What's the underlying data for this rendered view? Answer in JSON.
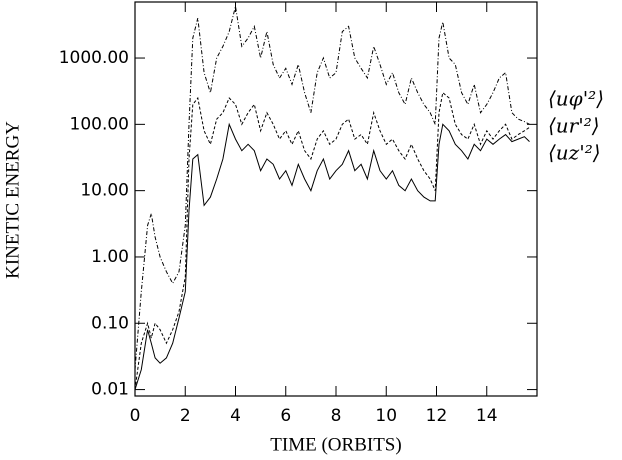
{
  "chart_data": {
    "type": "line",
    "xlabel": "TIME (ORBITS)",
    "ylabel": "KINETIC ENERGY",
    "yscale": "log",
    "xlim": [
      0,
      16
    ],
    "ylim": [
      0.008,
      7000
    ],
    "xticks": [
      0,
      2,
      4,
      6,
      8,
      10,
      12,
      14
    ],
    "yticks": [
      {
        "value": 0.01,
        "label": "0.01"
      },
      {
        "value": 0.1,
        "label": "0.10"
      },
      {
        "value": 1,
        "label": "1.00"
      },
      {
        "value": 10,
        "label": "10.00"
      },
      {
        "value": 100,
        "label": "100.00"
      },
      {
        "value": 1000,
        "label": "1000.00"
      }
    ],
    "x": [
      0,
      0.25,
      0.5,
      0.65,
      0.8,
      1.0,
      1.25,
      1.5,
      1.75,
      2.0,
      2.15,
      2.3,
      2.5,
      2.75,
      3.0,
      3.25,
      3.5,
      3.75,
      4.0,
      4.25,
      4.5,
      4.75,
      5.0,
      5.25,
      5.5,
      5.75,
      6.0,
      6.25,
      6.5,
      6.75,
      7.0,
      7.25,
      7.5,
      7.75,
      8.0,
      8.25,
      8.5,
      8.75,
      9.0,
      9.25,
      9.5,
      9.75,
      10.0,
      10.25,
      10.5,
      10.75,
      11.0,
      11.25,
      11.5,
      11.75,
      11.95,
      12.1,
      12.25,
      12.5,
      12.75,
      13.0,
      13.25,
      13.5,
      13.75,
      14.0,
      14.25,
      14.5,
      14.75,
      15.0,
      15.25,
      15.5,
      15.7
    ],
    "series": [
      {
        "name": "⟨uφ'²⟩",
        "color": "#000000",
        "linestyle": "dash-dot",
        "values": [
          0.02,
          0.3,
          3,
          4.5,
          2,
          1.0,
          0.6,
          0.4,
          0.6,
          3,
          100,
          2000,
          4000,
          600,
          300,
          1000,
          1500,
          2500,
          6000,
          1500,
          2000,
          3000,
          1000,
          2500,
          800,
          500,
          700,
          400,
          800,
          300,
          150,
          600,
          1000,
          500,
          600,
          2500,
          3000,
          1000,
          700,
          500,
          1500,
          800,
          400,
          600,
          300,
          200,
          500,
          300,
          200,
          150,
          100,
          2000,
          3500,
          1000,
          800,
          300,
          200,
          400,
          150,
          200,
          300,
          500,
          600,
          150,
          120,
          110,
          100
        ]
      },
      {
        "name": "⟨ur'²⟩",
        "color": "#000000",
        "linestyle": "dashed",
        "values": [
          0.01,
          0.05,
          0.1,
          0.06,
          0.1,
          0.08,
          0.05,
          0.08,
          0.15,
          0.5,
          30,
          200,
          250,
          80,
          50,
          120,
          150,
          250,
          200,
          100,
          150,
          200,
          80,
          150,
          100,
          60,
          80,
          50,
          80,
          40,
          30,
          60,
          80,
          50,
          60,
          100,
          120,
          60,
          70,
          50,
          150,
          80,
          50,
          60,
          40,
          30,
          50,
          30,
          20,
          15,
          10,
          150,
          300,
          250,
          100,
          70,
          60,
          100,
          50,
          80,
          60,
          80,
          100,
          60,
          70,
          80,
          90
        ]
      },
      {
        "name": "⟨uz'²⟩",
        "color": "#000000",
        "linestyle": "solid",
        "values": [
          0.01,
          0.02,
          0.08,
          0.05,
          0.03,
          0.025,
          0.03,
          0.05,
          0.12,
          0.3,
          5,
          30,
          35,
          6,
          8,
          15,
          30,
          100,
          60,
          40,
          50,
          40,
          20,
          30,
          25,
          15,
          20,
          12,
          25,
          15,
          10,
          20,
          30,
          15,
          20,
          25,
          40,
          20,
          25,
          15,
          40,
          20,
          15,
          20,
          12,
          10,
          15,
          10,
          8,
          7,
          7,
          50,
          100,
          80,
          50,
          40,
          30,
          50,
          40,
          60,
          50,
          60,
          70,
          55,
          60,
          65,
          55
        ]
      }
    ]
  }
}
